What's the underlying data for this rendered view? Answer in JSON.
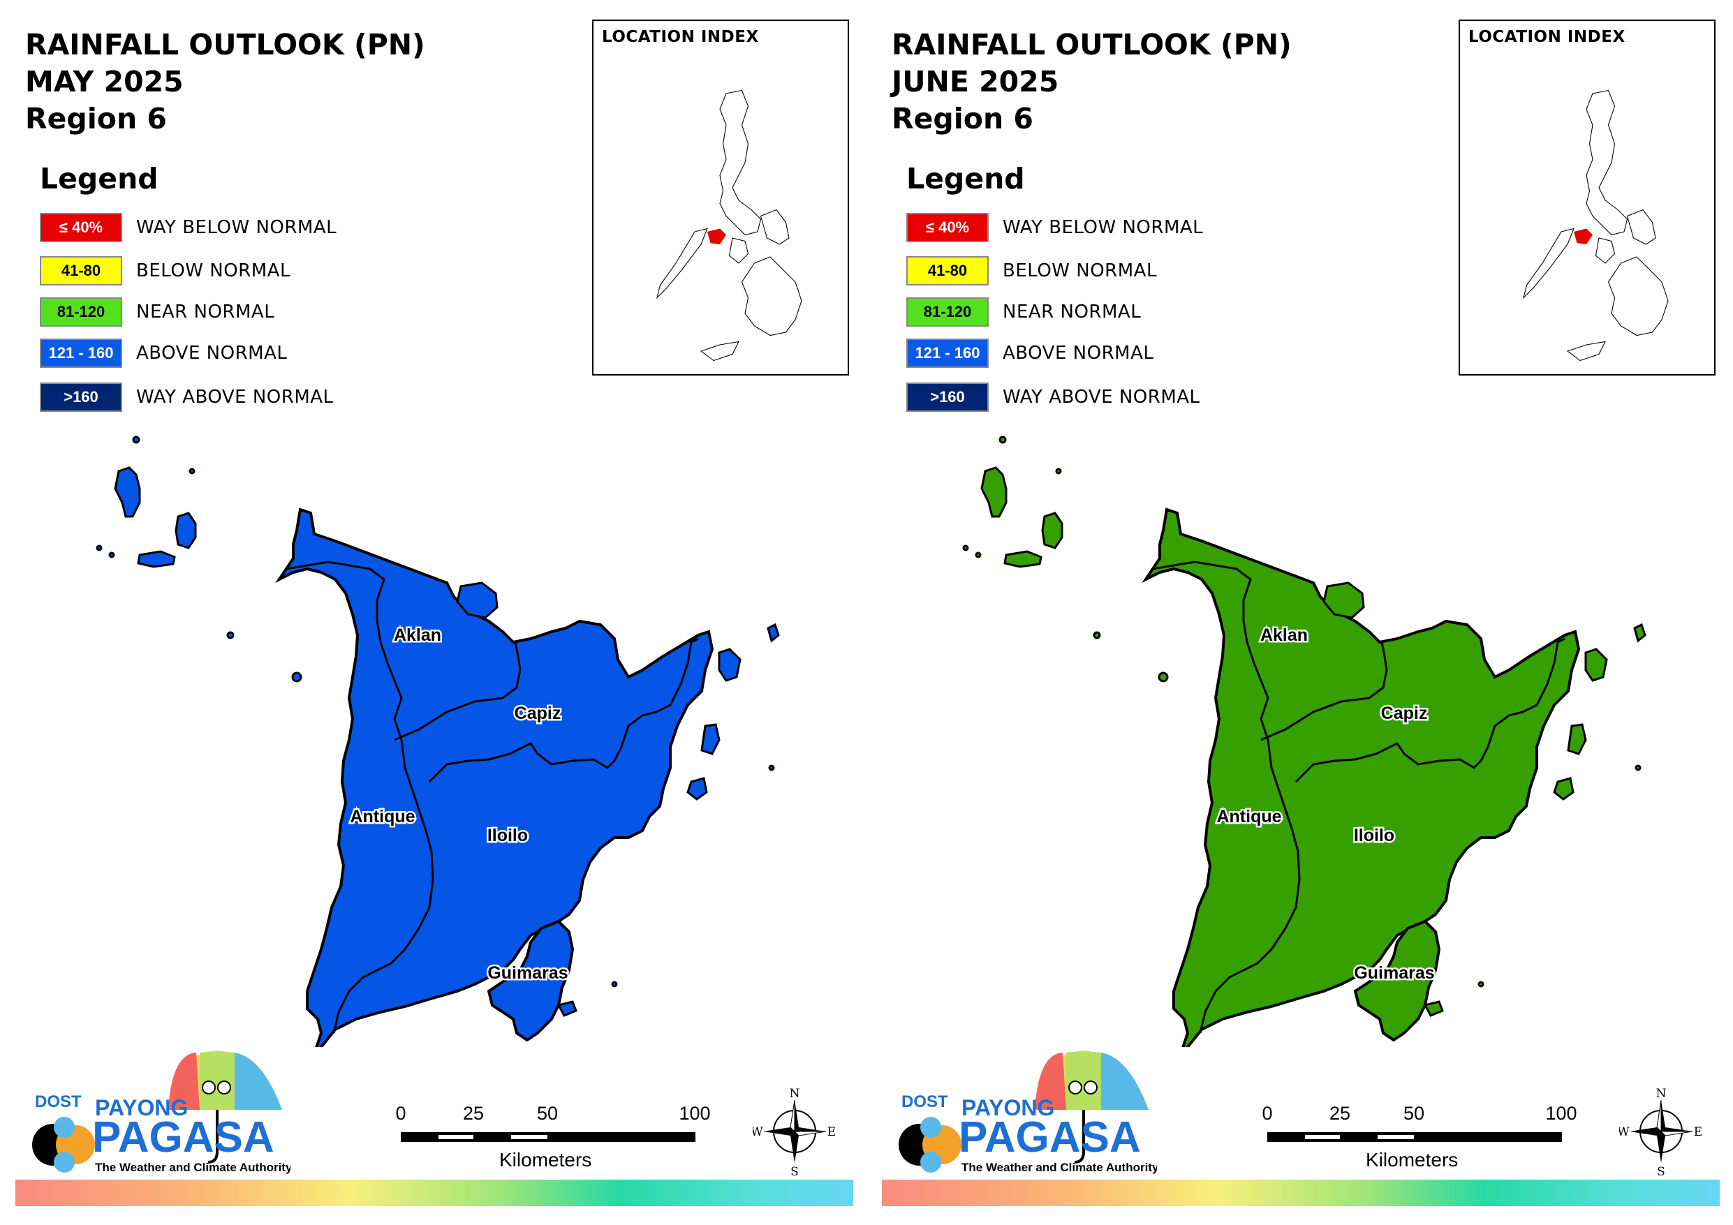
{
  "panels": [
    {
      "title": [
        "RAINFALL OUTLOOK (PN)",
        "MAY 2025",
        "Region 6"
      ],
      "fill_color": "#0556e6",
      "category": "121 - 160"
    },
    {
      "title": [
        "RAINFALL OUTLOOK (PN)",
        "JUNE 2025",
        "Region 6"
      ],
      "fill_color": "#36a000",
      "category": "81-120"
    }
  ],
  "legend": {
    "title": "Legend",
    "items": [
      {
        "range": "≤ 40%",
        "label": "WAY BELOW NORMAL",
        "color": "#e60000",
        "text_color": "#ffffff"
      },
      {
        "range": "41-80",
        "label": "BELOW NORMAL",
        "color": "#ffff00",
        "text_color": "#000000"
      },
      {
        "range": "81-120",
        "label": "NEAR NORMAL",
        "color": "#55e01e",
        "text_color": "#000000"
      },
      {
        "range": "121 - 160",
        "label": "ABOVE NORMAL",
        "color": "#0a5ae6",
        "text_color": "#ffffff"
      },
      {
        "range": ">160",
        "label": "WAY ABOVE NORMAL",
        "color": "#002673",
        "text_color": "#ffffff"
      }
    ]
  },
  "location_index": {
    "title": "LOCATION INDEX",
    "highlight_color": "#e60000"
  },
  "provinces": [
    "Aklan",
    "Capiz",
    "Antique",
    "Iloilo",
    "Guimaras"
  ],
  "logo": {
    "dost": "DOST",
    "payong": "PAYONG",
    "pagasa": "PAGASA",
    "tagline": "The Weather and Climate Authority"
  },
  "scale": {
    "ticks": [
      "0",
      "25",
      "50",
      "100"
    ],
    "unit": "Kilometers"
  },
  "compass": {
    "n": "N",
    "s": "S",
    "e": "E",
    "w": "W"
  }
}
